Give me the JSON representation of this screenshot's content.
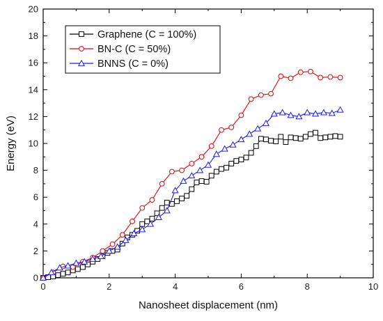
{
  "chart_data": {
    "type": "line",
    "xlabel": "Nanosheet displacement (nm)",
    "ylabel": "Energy (eV)",
    "xlim": [
      0,
      10
    ],
    "ylim": [
      0,
      20
    ],
    "xticks": [
      "0",
      "2",
      "4",
      "6",
      "8",
      "10"
    ],
    "yticks": [
      "0",
      "2",
      "4",
      "6",
      "8",
      "10",
      "12",
      "14",
      "16",
      "18",
      "20"
    ],
    "grid": false,
    "legend_position": "top-left",
    "series": [
      {
        "name": "Graphene (C = 100%)",
        "color": "#000000",
        "marker": "square",
        "x": [
          0.0,
          0.15,
          0.3,
          0.45,
          0.6,
          0.75,
          0.9,
          1.05,
          1.2,
          1.35,
          1.5,
          1.65,
          1.8,
          1.95,
          2.1,
          2.25,
          2.4,
          2.55,
          2.7,
          2.85,
          3.0,
          3.15,
          3.3,
          3.45,
          3.6,
          3.75,
          3.9,
          4.05,
          4.2,
          4.35,
          4.5,
          4.65,
          4.8,
          4.95,
          5.1,
          5.25,
          5.4,
          5.55,
          5.7,
          5.85,
          6.0,
          6.15,
          6.3,
          6.45,
          6.6,
          6.75,
          6.9,
          7.05,
          7.2,
          7.35,
          7.5,
          7.65,
          7.8,
          7.95,
          8.1,
          8.25,
          8.4,
          8.55,
          8.7,
          8.85,
          9.0
        ],
        "y": [
          0.0,
          0.05,
          0.1,
          0.2,
          0.3,
          0.4,
          0.55,
          0.65,
          0.8,
          1.0,
          1.2,
          1.4,
          1.6,
          1.85,
          2.0,
          2.1,
          2.55,
          3.0,
          3.2,
          3.5,
          4.0,
          4.2,
          4.4,
          4.8,
          5.2,
          5.6,
          5.5,
          5.7,
          5.9,
          6.1,
          6.6,
          7.1,
          7.2,
          7.15,
          7.6,
          7.9,
          8.1,
          8.2,
          8.5,
          8.7,
          8.8,
          8.95,
          9.3,
          9.8,
          10.35,
          10.3,
          10.2,
          10.15,
          10.5,
          10.1,
          10.45,
          10.4,
          10.35,
          10.5,
          10.7,
          10.8,
          10.4,
          10.45,
          10.5,
          10.55,
          10.5
        ]
      },
      {
        "name": "BN-C (C = 50%)",
        "color": "#e8000b",
        "marker": "circle",
        "x": [
          0.0,
          0.3,
          0.6,
          0.9,
          1.2,
          1.5,
          1.8,
          2.1,
          2.4,
          2.7,
          3.0,
          3.3,
          3.6,
          3.9,
          4.2,
          4.5,
          4.8,
          5.1,
          5.4,
          5.7,
          6.0,
          6.3,
          6.6,
          6.9,
          7.2,
          7.5,
          7.8,
          8.1,
          8.4,
          8.7,
          9.0
        ],
        "y": [
          0.0,
          0.4,
          0.85,
          0.8,
          1.2,
          1.5,
          2.0,
          2.5,
          3.2,
          4.2,
          5.2,
          5.8,
          7.0,
          7.9,
          8.0,
          8.5,
          9.0,
          9.8,
          11.0,
          11.2,
          12.1,
          13.3,
          13.6,
          13.7,
          15.0,
          14.85,
          15.3,
          15.35,
          14.9,
          14.95,
          14.9
        ]
      },
      {
        "name": "BNNS (C = 0%)",
        "color": "#1a1aff",
        "marker": "triangle",
        "x": [
          0.0,
          0.25,
          0.5,
          0.75,
          1.0,
          1.25,
          1.5,
          1.75,
          2.0,
          2.25,
          2.5,
          2.75,
          3.0,
          3.25,
          3.5,
          3.75,
          4.0,
          4.25,
          4.5,
          4.75,
          5.0,
          5.25,
          5.5,
          5.75,
          6.0,
          6.25,
          6.5,
          6.75,
          7.0,
          7.25,
          7.5,
          7.75,
          8.0,
          8.25,
          8.5,
          8.75,
          9.0
        ],
        "y": [
          0.0,
          0.4,
          0.75,
          0.9,
          1.1,
          1.2,
          1.4,
          1.6,
          2.0,
          2.3,
          2.8,
          3.3,
          3.6,
          4.0,
          4.5,
          5.0,
          6.5,
          7.2,
          7.6,
          8.0,
          8.4,
          9.2,
          9.6,
          9.9,
          10.3,
          10.7,
          11.1,
          11.5,
          12.2,
          12.3,
          12.1,
          12.0,
          12.3,
          12.2,
          12.3,
          12.25,
          12.5
        ]
      }
    ]
  }
}
